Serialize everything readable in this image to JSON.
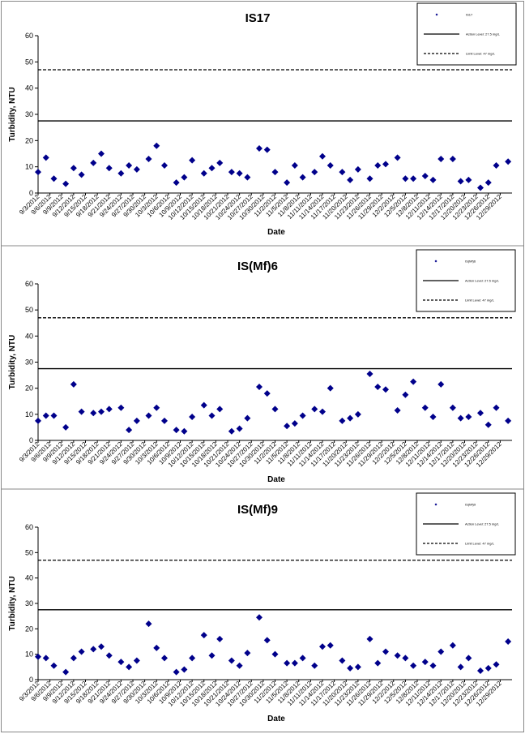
{
  "chart_data": [
    {
      "type": "scatter",
      "title": "IS17",
      "xlabel": "Date",
      "ylabel": "Turbidity, NTU",
      "ylim": [
        0,
        60
      ],
      "yticks": [
        0,
        10,
        20,
        30,
        40,
        50,
        60
      ],
      "grid": false,
      "legend_position": "top-right",
      "x_tick_labels": [
        "9/3/2012",
        "9/6/2012",
        "9/9/2012",
        "9/12/2012",
        "9/15/2012",
        "9/18/2012",
        "9/21/2012",
        "9/24/2012",
        "9/27/2012",
        "9/30/2012",
        "10/3/2012",
        "10/6/2012",
        "10/9/2012",
        "10/12/2012",
        "10/15/2012",
        "10/18/2012",
        "10/21/2012",
        "10/24/2012",
        "10/27/2012",
        "10/30/2012",
        "11/2/2012",
        "11/5/2012",
        "11/8/2012",
        "11/11/2012",
        "11/14/2012",
        "11/17/2012",
        "11/20/2012",
        "11/23/2012",
        "11/26/2012",
        "11/29/2012",
        "12/2/2012",
        "12/5/2012",
        "12/8/2012",
        "12/11/2012",
        "12/14/2012",
        "12/17/2012",
        "12/20/2012",
        "12/23/2012",
        "12/26/2012",
        "12/29/2012"
      ],
      "series": [
        {
          "name": "IS17",
          "marker": "diamond",
          "color": "#00008B",
          "x": [
            "9/3/2012",
            "9/5/2012",
            "9/7/2012",
            "9/10/2012",
            "9/12/2012",
            "9/14/2012",
            "9/17/2012",
            "9/19/2012",
            "9/21/2012",
            "9/24/2012",
            "9/26/2012",
            "9/28/2012",
            "10/1/2012",
            "10/3/2012",
            "10/5/2012",
            "10/8/2012",
            "10/10/2012",
            "10/12/2012",
            "10/15/2012",
            "10/17/2012",
            "10/19/2012",
            "10/22/2012",
            "10/24/2012",
            "10/26/2012",
            "10/29/2012",
            "10/31/2012",
            "11/2/2012",
            "11/5/2012",
            "11/7/2012",
            "11/9/2012",
            "11/12/2012",
            "11/14/2012",
            "11/16/2012",
            "11/19/2012",
            "11/21/2012",
            "11/23/2012",
            "11/26/2012",
            "11/28/2012",
            "11/30/2012",
            "12/3/2012",
            "12/5/2012",
            "12/7/2012",
            "12/10/2012",
            "12/12/2012",
            "12/14/2012",
            "12/17/2012",
            "12/19/2012",
            "12/21/2012",
            "12/24/2012",
            "12/26/2012",
            "12/28/2012",
            "12/31/2012"
          ],
          "y": [
            8,
            13.5,
            5.5,
            3.5,
            9.5,
            7,
            11.5,
            15,
            9.5,
            7.5,
            10.5,
            9,
            13,
            18,
            10.5,
            4,
            6,
            12.5,
            7.5,
            9.5,
            11.5,
            8,
            7.5,
            6,
            17,
            16.5,
            8,
            4,
            10.5,
            6,
            8,
            14,
            10.5,
            8,
            5,
            9,
            5.5,
            10.5,
            11,
            13.5,
            5.5,
            5.5,
            6.5,
            5,
            13,
            13,
            4.5,
            5,
            2,
            4,
            10.5,
            12
          ]
        }
      ],
      "reference_lines": [
        {
          "name": "Action Level: 27.5 mg/L",
          "value": 27.5,
          "style": "solid"
        },
        {
          "name": "Limit Level: 47 mg/L",
          "value": 47,
          "style": "dashed"
        }
      ]
    },
    {
      "type": "scatter",
      "title": "IS(Mf)6",
      "xlabel": "Date",
      "ylabel": "Turbidity, NTU",
      "ylim": [
        0,
        60
      ],
      "yticks": [
        0,
        10,
        20,
        30,
        40,
        50,
        60
      ],
      "grid": false,
      "legend_position": "top-right",
      "x_tick_labels": [
        "9/3/2012",
        "9/6/2012",
        "9/9/2012",
        "9/12/2012",
        "9/15/2012",
        "9/18/2012",
        "9/21/2012",
        "9/24/2012",
        "9/27/2012",
        "9/30/2012",
        "10/3/2012",
        "10/6/2012",
        "10/9/2012",
        "10/12/2012",
        "10/15/2012",
        "10/18/2012",
        "10/21/2012",
        "10/24/2012",
        "10/27/2012",
        "10/30/2012",
        "11/2/2012",
        "11/5/2012",
        "11/8/2012",
        "11/11/2012",
        "11/14/2012",
        "11/17/2012",
        "11/20/2012",
        "11/23/2012",
        "11/26/2012",
        "11/29/2012",
        "12/2/2012",
        "12/5/2012",
        "12/8/2012",
        "12/11/2012",
        "12/14/2012",
        "12/17/2012",
        "12/20/2012",
        "12/23/2012",
        "12/26/2012",
        "12/29/2012"
      ],
      "series": [
        {
          "name": "IS(Mf)6",
          "marker": "diamond",
          "color": "#00008B",
          "x": [
            "9/3/2012",
            "9/5/2012",
            "9/7/2012",
            "9/10/2012",
            "9/12/2012",
            "9/14/2012",
            "9/17/2012",
            "9/19/2012",
            "9/21/2012",
            "9/24/2012",
            "9/26/2012",
            "9/28/2012",
            "10/1/2012",
            "10/3/2012",
            "10/5/2012",
            "10/8/2012",
            "10/10/2012",
            "10/12/2012",
            "10/15/2012",
            "10/17/2012",
            "10/19/2012",
            "10/22/2012",
            "10/24/2012",
            "10/26/2012",
            "10/29/2012",
            "10/31/2012",
            "11/2/2012",
            "11/5/2012",
            "11/7/2012",
            "11/9/2012",
            "11/12/2012",
            "11/14/2012",
            "11/16/2012",
            "11/19/2012",
            "11/21/2012",
            "11/23/2012",
            "11/26/2012",
            "11/28/2012",
            "11/30/2012",
            "12/3/2012",
            "12/5/2012",
            "12/7/2012",
            "12/10/2012",
            "12/12/2012",
            "12/14/2012",
            "12/17/2012",
            "12/19/2012",
            "12/21/2012",
            "12/24/2012",
            "12/26/2012",
            "12/28/2012",
            "12/31/2012"
          ],
          "y": [
            7.5,
            9.5,
            9.5,
            5,
            21.5,
            11,
            10.5,
            11,
            12,
            12.5,
            4,
            7.5,
            9.5,
            12.5,
            7.5,
            4,
            3.5,
            9,
            13.5,
            9.5,
            12,
            3.5,
            4.5,
            8.5,
            20.5,
            18,
            12,
            5.5,
            6.5,
            9.5,
            12,
            11,
            20,
            7.5,
            8.5,
            10,
            25.5,
            20.5,
            19.5,
            11.5,
            17.5,
            22.5,
            12.5,
            9,
            21.5,
            12.5,
            8.5,
            9,
            10.5,
            6,
            12.5,
            7.5
          ]
        }
      ],
      "reference_lines": [
        {
          "name": "Action Level: 27.5 mg/L",
          "value": 27.5,
          "style": "solid"
        },
        {
          "name": "Limit Level: 47 mg/L",
          "value": 47,
          "style": "dashed"
        }
      ]
    },
    {
      "type": "scatter",
      "title": "IS(Mf)9",
      "xlabel": "Date",
      "ylabel": "Turbidity, NTU",
      "ylim": [
        0,
        60
      ],
      "yticks": [
        0,
        10,
        20,
        30,
        40,
        50,
        60
      ],
      "grid": false,
      "legend_position": "top-right",
      "x_tick_labels": [
        "9/3/2012",
        "9/6/2012",
        "9/9/2012",
        "9/12/2012",
        "9/15/2012",
        "9/18/2012",
        "9/21/2012",
        "9/24/2012",
        "9/27/2012",
        "9/30/2012",
        "10/3/2012",
        "10/6/2012",
        "10/9/2012",
        "10/12/2012",
        "10/15/2012",
        "10/18/2012",
        "10/21/2012",
        "10/24/2012",
        "10/27/2012",
        "10/30/2012",
        "11/2/2012",
        "11/5/2012",
        "11/8/2012",
        "11/11/2012",
        "11/14/2012",
        "11/17/2012",
        "11/20/2012",
        "11/23/2012",
        "11/26/2012",
        "11/29/2012",
        "12/2/2012",
        "12/5/2012",
        "12/8/2012",
        "12/11/2012",
        "12/14/2012",
        "12/17/2012",
        "12/20/2012",
        "12/23/2012",
        "12/26/2012",
        "12/29/2012"
      ],
      "series": [
        {
          "name": "IS(Mf)9",
          "marker": "diamond",
          "color": "#00008B",
          "x": [
            "9/3/2012",
            "9/5/2012",
            "9/7/2012",
            "9/10/2012",
            "9/12/2012",
            "9/14/2012",
            "9/17/2012",
            "9/19/2012",
            "9/21/2012",
            "9/24/2012",
            "9/26/2012",
            "9/28/2012",
            "10/1/2012",
            "10/3/2012",
            "10/5/2012",
            "10/8/2012",
            "10/10/2012",
            "10/12/2012",
            "10/15/2012",
            "10/17/2012",
            "10/19/2012",
            "10/22/2012",
            "10/24/2012",
            "10/26/2012",
            "10/29/2012",
            "10/31/2012",
            "11/2/2012",
            "11/5/2012",
            "11/7/2012",
            "11/9/2012",
            "11/12/2012",
            "11/14/2012",
            "11/16/2012",
            "11/19/2012",
            "11/21/2012",
            "11/23/2012",
            "11/26/2012",
            "11/28/2012",
            "11/30/2012",
            "12/3/2012",
            "12/5/2012",
            "12/7/2012",
            "12/10/2012",
            "12/12/2012",
            "12/14/2012",
            "12/17/2012",
            "12/19/2012",
            "12/21/2012",
            "12/24/2012",
            "12/26/2012",
            "12/28/2012",
            "12/31/2012"
          ],
          "y": [
            9,
            8.5,
            5.5,
            3,
            8.5,
            11,
            12,
            13,
            9.5,
            7,
            5,
            7.5,
            22,
            12.5,
            8.5,
            3,
            4,
            8.5,
            17.5,
            9.5,
            16,
            7.5,
            5.5,
            10.5,
            24.5,
            15.5,
            10,
            6.5,
            6.5,
            8.5,
            5.5,
            13,
            13.5,
            7.5,
            4.5,
            5,
            16,
            6.5,
            11,
            9.5,
            8.5,
            5.5,
            7,
            5.5,
            11,
            13.5,
            5,
            8.5,
            3.5,
            4.5,
            6,
            15
          ]
        }
      ],
      "reference_lines": [
        {
          "name": "Action Level: 27.5 mg/L",
          "value": 27.5,
          "style": "solid"
        },
        {
          "name": "Limit Level: 47 mg/L",
          "value": 47,
          "style": "dashed"
        }
      ]
    }
  ]
}
